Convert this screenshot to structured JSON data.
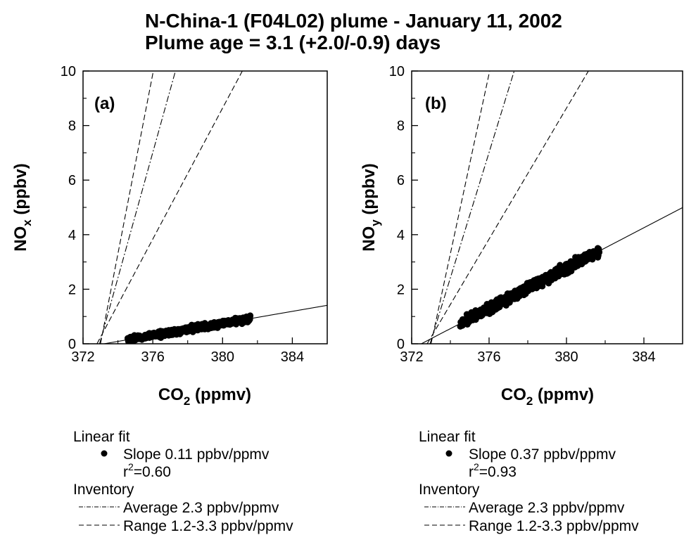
{
  "figure": {
    "title_line1": "N-China-1 (F04L02) plume - January 11, 2002",
    "title_line2": "Plume age = 3.1 (+2.0/-0.9) days"
  },
  "chart_data": [
    {
      "type": "scatter",
      "panel_label": "(a)",
      "xlabel": "CO",
      "xlabel_sub": "2",
      "xlabel_unit": " (ppmv)",
      "ylabel": "NO",
      "ylabel_sub": "x",
      "ylabel_unit": " (ppbv)",
      "xlim": [
        372,
        386
      ],
      "ylim": [
        0,
        10
      ],
      "xticks": [
        372,
        376,
        380,
        384
      ],
      "yticks": [
        0,
        2,
        4,
        6,
        8,
        10
      ],
      "scatter_cluster": {
        "x_range": [
          374.5,
          381.6
        ],
        "slope": 0.11,
        "intercept_x": 373.2,
        "spread": 0.18,
        "n": 650
      },
      "fit_line": {
        "slope": 0.11,
        "x0": 373.2,
        "style": "solid"
      },
      "inventory_lines": [
        {
          "kind": "range",
          "slope": 3.3,
          "x0": 373.0,
          "style": "dashed"
        },
        {
          "kind": "average",
          "slope": 2.3,
          "x0": 372.95,
          "style": "dashdot"
        },
        {
          "kind": "range",
          "slope": 1.2,
          "x0": 372.8,
          "style": "dashed"
        }
      ],
      "legend": {
        "header": "Linear fit",
        "fit_label": "Slope 0.11 ppbv/ppmv",
        "r2_prefix": "r",
        "r2_sup": "2",
        "r2_value": "=0.60",
        "inventory_header": "Inventory",
        "average_label": "Average 2.3 ppbv/ppmv",
        "range_label": "Range 1.2-3.3 ppbv/ppmv"
      }
    },
    {
      "type": "scatter",
      "panel_label": "(b)",
      "xlabel": "CO",
      "xlabel_sub": "2",
      "xlabel_unit": " (ppmv)",
      "ylabel": "NO",
      "ylabel_sub": "y",
      "ylabel_unit": " (ppbv)",
      "xlim": [
        372,
        386
      ],
      "ylim": [
        0,
        10
      ],
      "xticks": [
        372,
        376,
        380,
        384
      ],
      "yticks": [
        0,
        2,
        4,
        6,
        8,
        10
      ],
      "scatter_cluster": {
        "x_range": [
          374.5,
          381.7
        ],
        "slope": 0.37,
        "intercept_x": 372.5,
        "spread": 0.28,
        "n": 800
      },
      "fit_line": {
        "slope": 0.37,
        "x0": 372.5,
        "style": "solid"
      },
      "inventory_lines": [
        {
          "kind": "range",
          "slope": 3.3,
          "x0": 373.0,
          "style": "dashed"
        },
        {
          "kind": "average",
          "slope": 2.3,
          "x0": 372.95,
          "style": "dashdot"
        },
        {
          "kind": "range",
          "slope": 1.2,
          "x0": 372.8,
          "style": "dashed"
        }
      ],
      "legend": {
        "header": "Linear fit",
        "fit_label": "Slope 0.37 ppbv/ppmv",
        "r2_prefix": "r",
        "r2_sup": "2",
        "r2_value": "=0.93",
        "inventory_header": "Inventory",
        "average_label": "Average 2.3 ppbv/ppmv",
        "range_label": "Range 1.2-3.3 ppbv/ppmv"
      }
    }
  ]
}
